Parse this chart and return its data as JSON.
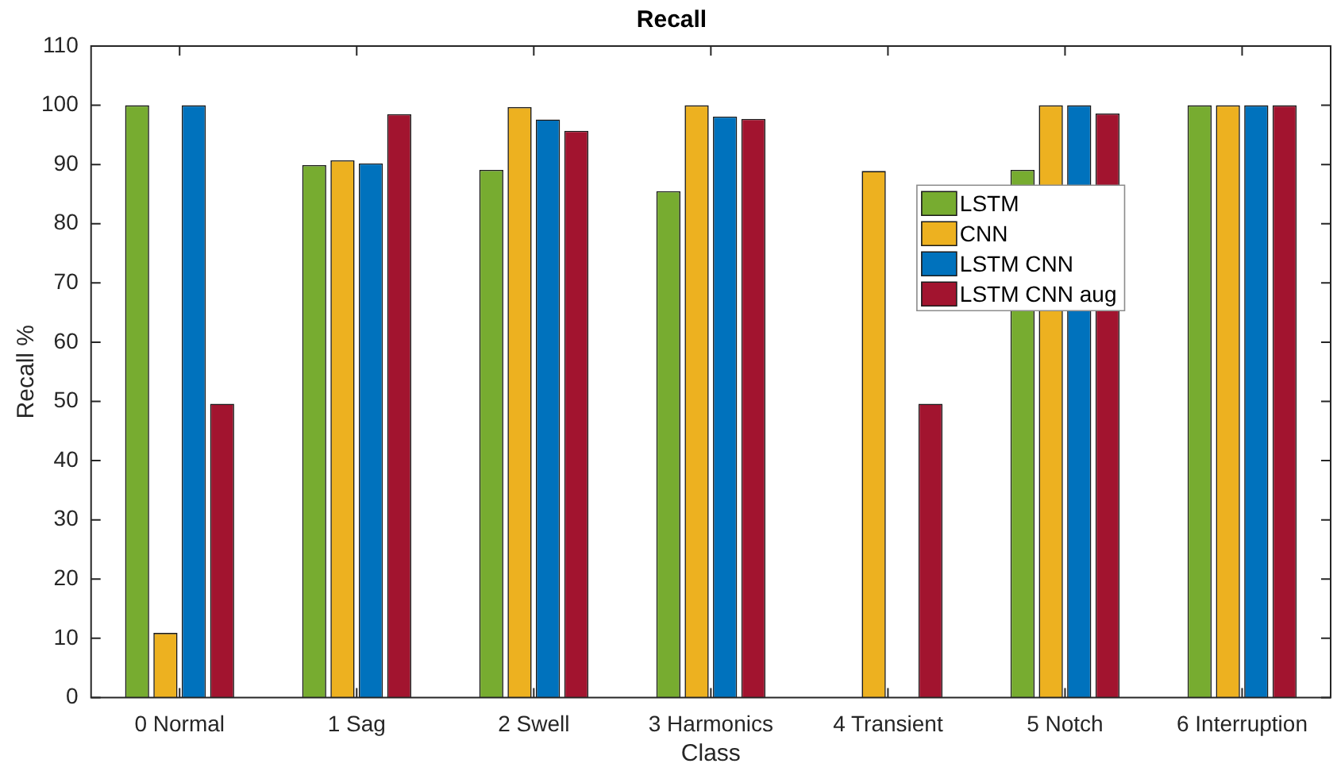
{
  "chart_data": {
    "type": "bar",
    "title": "Recall",
    "xlabel": "Class",
    "ylabel": "Recall %",
    "categories": [
      "0 Normal",
      "1 Sag",
      "2 Swell",
      "3 Harmonics",
      "4 Transient",
      "5 Notch",
      "6 Interruption"
    ],
    "series": [
      {
        "name": "LSTM",
        "color": "#77ac30",
        "values": [
          100,
          89.9,
          89.1,
          85.5,
          0,
          89.1,
          100
        ]
      },
      {
        "name": "CNN",
        "color": "#edb120",
        "values": [
          10.9,
          90.7,
          99.7,
          100,
          88.9,
          100,
          100
        ]
      },
      {
        "name": "LSTM CNN",
        "color": "#0072bd",
        "values": [
          100,
          90.2,
          97.6,
          98.1,
          0,
          100,
          100
        ]
      },
      {
        "name": "LSTM CNN aug",
        "color": "#a2142f",
        "values": [
          49.6,
          98.5,
          95.7,
          97.7,
          49.6,
          98.6,
          100
        ]
      }
    ],
    "ylim": [
      0,
      110
    ],
    "yticks": [
      0,
      10,
      20,
      30,
      40,
      50,
      60,
      70,
      80,
      90,
      100,
      110
    ],
    "grid": false,
    "legend": "top right"
  }
}
